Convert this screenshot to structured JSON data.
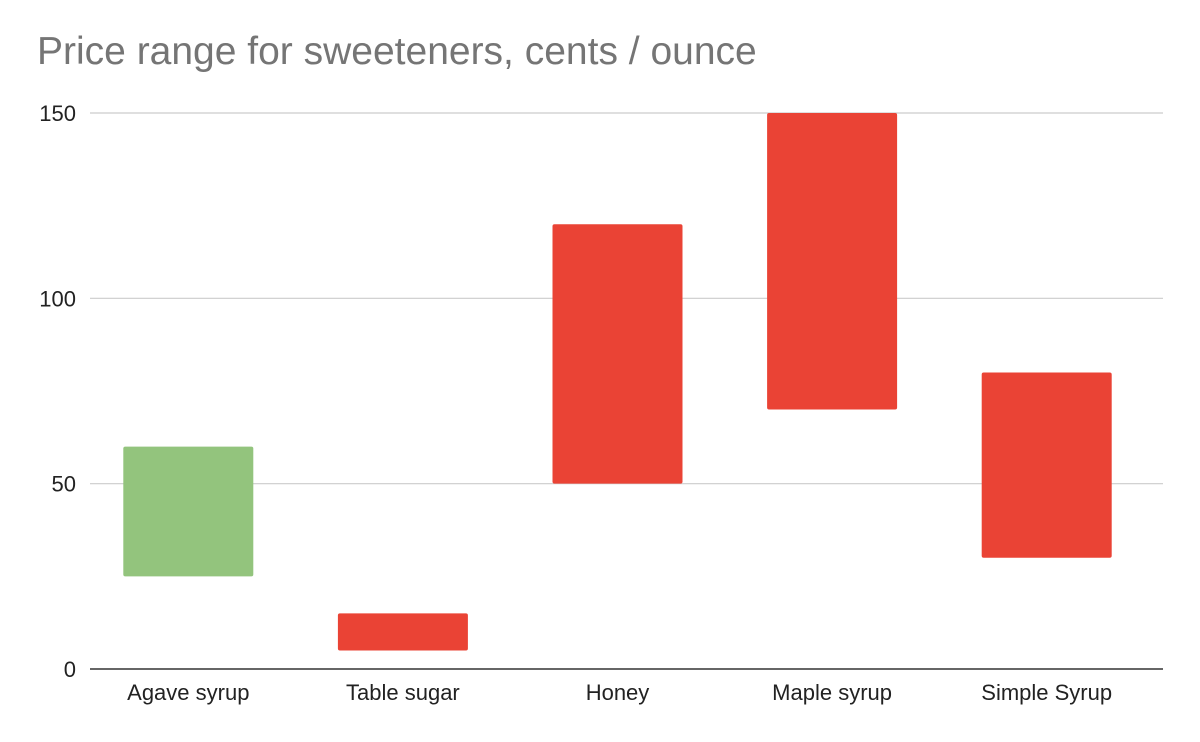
{
  "chart_data": {
    "type": "bar",
    "subtype": "floating-range",
    "title": "Price range for sweeteners, cents / ounce",
    "xlabel": "",
    "ylabel": "",
    "ylim": [
      0,
      150
    ],
    "yticks": [
      0,
      50,
      100,
      150
    ],
    "ytick_labels": [
      "0",
      "50",
      "100",
      "150"
    ],
    "grid": true,
    "legend": "none",
    "categories": [
      "Agave syrup",
      "Table sugar",
      "Honey",
      "Maple syrup",
      "Simple Syrup"
    ],
    "ranges": [
      {
        "low": 25,
        "high": 60,
        "color": "#93c47d"
      },
      {
        "low": 5,
        "high": 15,
        "color": "#ea4335"
      },
      {
        "low": 50,
        "high": 120,
        "color": "#ea4335"
      },
      {
        "low": 70,
        "high": 150,
        "color": "#ea4335"
      },
      {
        "low": 30,
        "high": 80,
        "color": "#ea4335"
      }
    ],
    "colors": {
      "grid": "#cccccc",
      "axis": "#333333",
      "tick_text": "#222222",
      "title_text": "#757575"
    }
  }
}
